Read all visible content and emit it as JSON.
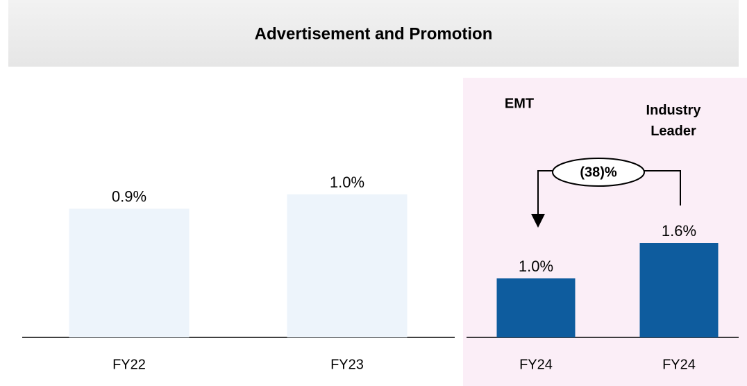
{
  "chart_data": [
    {
      "type": "bar",
      "title": "Advertisement and Promotion",
      "categories": [
        "FY22",
        "FY23"
      ],
      "values": [
        0.9,
        1.0
      ],
      "value_labels": [
        "0.9%",
        "1.0%"
      ],
      "color": "#edf4fb"
    },
    {
      "type": "bar",
      "categories": [
        "FY24",
        "FY24"
      ],
      "values": [
        1.0,
        1.6
      ],
      "value_labels": [
        "1.0%",
        "1.6%"
      ],
      "color": "#0e5c9e",
      "annotations": [
        "EMT",
        "Industry Leader",
        "(38)%"
      ]
    }
  ]
}
